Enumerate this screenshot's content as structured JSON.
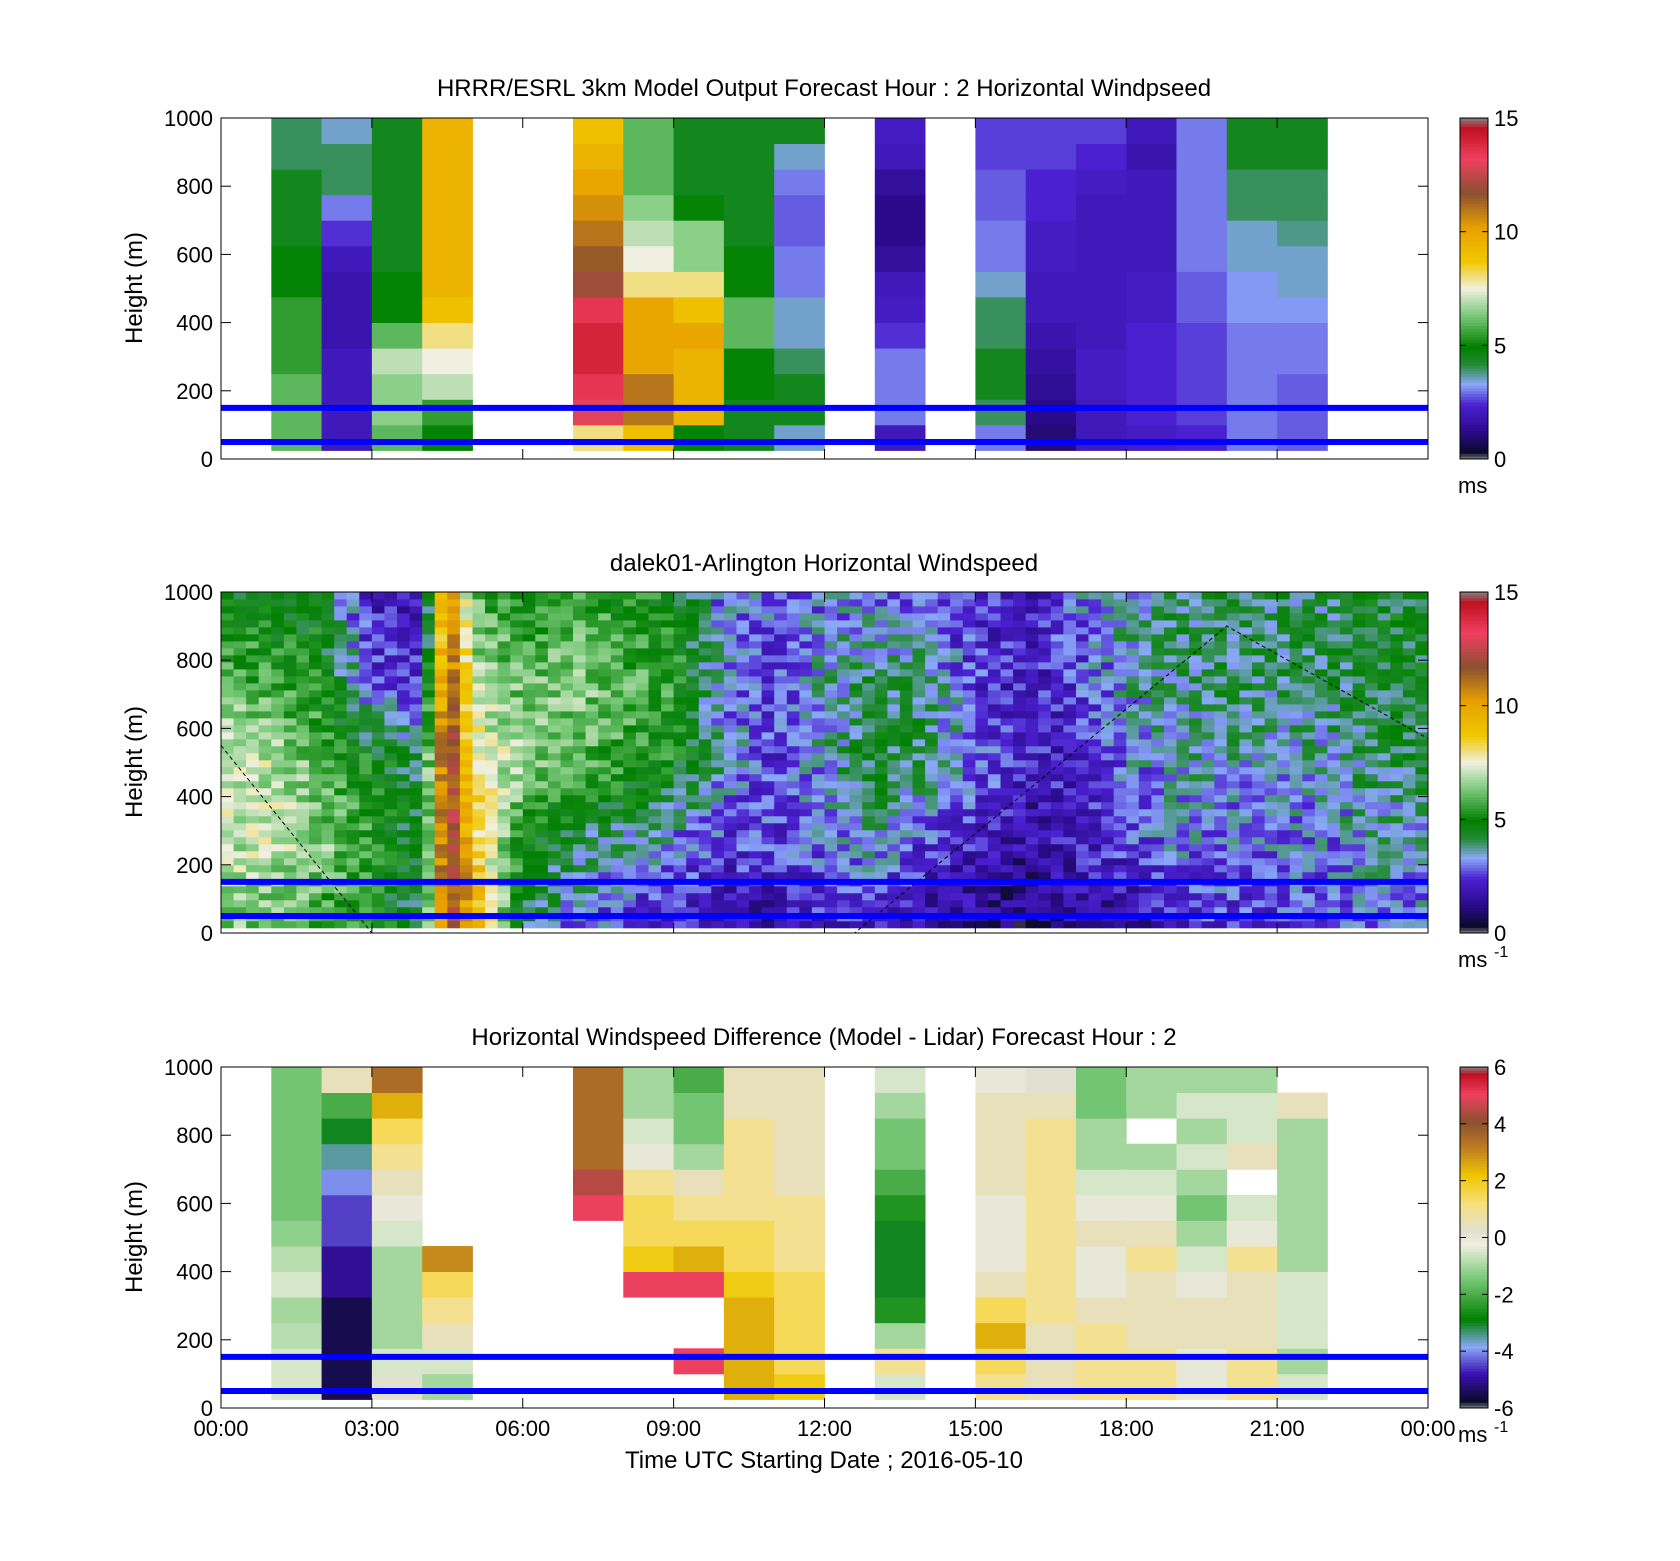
{
  "figure": {
    "xlabel": "Time UTC  Starting Date ; 2016-05-10",
    "x_ticks": [
      "00:00",
      "03:00",
      "06:00",
      "09:00",
      "12:00",
      "15:00",
      "18:00",
      "21:00",
      "00:00"
    ]
  },
  "chart_data": [
    {
      "type": "heatmap",
      "title": "HRRR/ESRL 3km Model Output   Forecast Hour : 2 Horizontal Windpseed",
      "ylabel": "Height (m)",
      "xlim_hours": [
        0,
        24
      ],
      "ylim": [
        0,
        1000
      ],
      "y_ticks": [
        "0",
        "200",
        "400",
        "600",
        "800",
        "1000"
      ],
      "colorbar": {
        "ticks": [
          "0",
          "5",
          "10",
          "15"
        ],
        "range": [
          0,
          15
        ],
        "unit": "ms",
        "unit_sup": "",
        "palette": "wind"
      },
      "hlines_m": [
        50,
        150
      ],
      "column_width_hours": 1,
      "columns": [
        {
          "t": 1,
          "v": [
            6,
            6,
            6,
            5.5,
            5.5,
            5.5,
            5,
            5,
            4.5,
            4.5,
            4.5,
            4,
            4
          ]
        },
        {
          "t": 2,
          "v": [
            2,
            2,
            2,
            2,
            1.8,
            1.8,
            1.8,
            2,
            2.5,
            3,
            4,
            4,
            3.5
          ]
        },
        {
          "t": 3,
          "v": [
            6,
            6.5,
            6.5,
            7,
            6,
            5,
            5,
            4.5,
            4.5,
            4.5,
            4.5,
            4.5,
            4.5
          ]
        },
        {
          "t": 4,
          "v": [
            5,
            5.5,
            7,
            7.5,
            8,
            9,
            9.5,
            9.5,
            9.5,
            9.5,
            9.5,
            9.5,
            9.5
          ]
        },
        {
          "t": 7,
          "v": [
            8,
            13,
            13.5,
            14,
            14,
            13.5,
            12,
            11.5,
            11,
            10.5,
            10,
            9.5,
            9
          ]
        },
        {
          "t": 8,
          "v": [
            9,
            11,
            11,
            10,
            10,
            10,
            8,
            7.5,
            7,
            6.5,
            6,
            6,
            6
          ]
        },
        {
          "t": 9,
          "v": [
            5,
            9.5,
            9.5,
            9.5,
            10,
            9,
            8,
            6.5,
            6.5,
            5,
            4.5,
            4.5,
            4.5
          ]
        },
        {
          "t": 10,
          "v": [
            4.5,
            4.5,
            5,
            5,
            6,
            6,
            5,
            5,
            4.5,
            4.5,
            4.5,
            4.5,
            4.5
          ]
        },
        {
          "t": 11,
          "v": [
            3.5,
            4.5,
            4.5,
            4,
            3.5,
            3.5,
            3,
            3,
            2.8,
            2.8,
            3,
            3.5,
            4.5
          ]
        },
        {
          "t": 13,
          "v": [
            2,
            3,
            3,
            3,
            2.5,
            2.2,
            2,
            1.5,
            1.2,
            1.2,
            1.5,
            2,
            2.2
          ]
        },
        {
          "t": 15,
          "v": [
            3,
            4,
            4.5,
            4.5,
            4,
            4,
            3.5,
            3,
            3,
            2.8,
            2.8,
            2.6,
            2.6
          ]
        },
        {
          "t": 16,
          "v": [
            1,
            1.2,
            1.4,
            1.6,
            1.8,
            2,
            2,
            2.2,
            2.2,
            2.4,
            2.4,
            2.6,
            2.6
          ]
        },
        {
          "t": 17,
          "v": [
            2,
            2,
            2.2,
            2.2,
            2,
            2,
            2,
            2,
            2,
            2,
            2.2,
            2.4,
            2.6
          ]
        },
        {
          "t": 18,
          "v": [
            2.2,
            2.4,
            2.4,
            2.4,
            2.4,
            2.2,
            2.2,
            2,
            2,
            2,
            2,
            1.8,
            2
          ]
        },
        {
          "t": 19,
          "v": [
            2.4,
            2.6,
            2.6,
            2.6,
            2.6,
            2.8,
            2.8,
            3,
            3,
            3,
            3,
            3,
            3
          ]
        },
        {
          "t": 20,
          "v": [
            3,
            3,
            3,
            3,
            3,
            3.2,
            3.2,
            3.5,
            3.5,
            4,
            4,
            4.5,
            4.5
          ]
        },
        {
          "t": 21,
          "v": [
            2.8,
            2.8,
            2.8,
            3,
            3,
            3.2,
            3.5,
            3.5,
            3.8,
            4,
            4,
            4.5,
            4.5
          ]
        }
      ]
    },
    {
      "type": "heatmap",
      "title": "dalek01-Arlington  Horizontal Windspeed",
      "ylabel": "Height (m)",
      "xlim_hours": [
        0,
        24
      ],
      "ylim": [
        0,
        1000
      ],
      "y_ticks": [
        "0",
        "200",
        "400",
        "600",
        "800",
        "1000"
      ],
      "colorbar": {
        "ticks": [
          "0",
          "5",
          "10",
          "15"
        ],
        "range": [
          0,
          15
        ],
        "unit": "ms",
        "unit_sup": "-1",
        "palette": "wind"
      },
      "hlines_m": [
        50,
        150
      ],
      "time_profile_hours": [
        0,
        1,
        2,
        3,
        4,
        4.5,
        5,
        6,
        7,
        8,
        9,
        10,
        11,
        12,
        13,
        14,
        15,
        16,
        17,
        18,
        19,
        20,
        21,
        22,
        23,
        24
      ],
      "height_profile_m": [
        0,
        250,
        500,
        750,
        1000
      ],
      "speed_profile": [
        [
          6.5,
          7,
          7,
          6,
          5
        ],
        [
          6,
          7,
          7,
          5.5,
          4.5
        ],
        [
          5.5,
          6.5,
          6,
          5,
          4.5
        ],
        [
          5,
          5.5,
          5,
          2.5,
          2
        ],
        [
          4,
          4,
          4,
          2.5,
          1.5
        ],
        [
          12,
          13,
          13,
          12,
          11
        ],
        [
          10,
          9,
          8,
          7,
          6
        ],
        [
          4,
          5,
          6.5,
          6,
          5
        ],
        [
          3,
          4,
          6,
          6.5,
          5.5
        ],
        [
          2.5,
          3.5,
          5.5,
          6,
          5
        ],
        [
          2,
          3,
          5,
          5.5,
          5
        ],
        [
          1.5,
          2.5,
          3.5,
          3,
          3
        ],
        [
          1.5,
          2.5,
          2.5,
          2.5,
          3
        ],
        [
          2,
          3,
          3.5,
          3.5,
          3
        ],
        [
          2,
          3.5,
          4.5,
          4,
          3
        ],
        [
          1.5,
          2.5,
          4,
          4,
          2.5
        ],
        [
          1.2,
          2,
          3,
          2.5,
          2.2
        ],
        [
          1,
          1.5,
          2,
          2,
          2
        ],
        [
          1.2,
          2,
          2.2,
          2.5,
          3
        ],
        [
          1.5,
          2.5,
          3,
          3.5,
          3.5
        ],
        [
          2,
          3,
          3.5,
          4,
          4
        ],
        [
          2.5,
          3,
          3.5,
          4,
          4
        ],
        [
          2.5,
          3,
          3.5,
          4,
          4
        ],
        [
          2.5,
          3,
          3.5,
          4,
          4
        ],
        [
          3,
          3.5,
          4,
          4.5,
          4.5
        ],
        [
          3,
          3.5,
          4,
          4.5,
          4.5
        ]
      ],
      "boundary_layer_curve": {
        "style": "dashed",
        "points_hours_m": [
          [
            0,
            550
          ],
          [
            3,
            0
          ],
          [
            12.6,
            0
          ],
          [
            20,
            900
          ],
          [
            24,
            570
          ]
        ]
      }
    },
    {
      "type": "heatmap",
      "title": "Horizontal Windspeed Difference (Model - Lidar) Forecast Hour : 2",
      "ylabel": "Height (m)",
      "xlim_hours": [
        0,
        24
      ],
      "ylim": [
        0,
        1000
      ],
      "y_ticks": [
        "0",
        "200",
        "400",
        "600",
        "800",
        "1000"
      ],
      "colorbar": {
        "ticks": [
          "-6",
          "-4",
          "-2",
          "0",
          "2",
          "4",
          "6"
        ],
        "range": [
          -6,
          6
        ],
        "unit": "ms",
        "unit_sup": "-1",
        "palette": "diff"
      },
      "hlines_m": [
        50,
        150
      ],
      "column_width_hours": 1,
      "columns": [
        {
          "t": 1,
          "v": [
            -0.5,
            -0.5,
            -0.8,
            -1,
            -0.5,
            -0.8,
            -1.2,
            -1.5,
            -1.5,
            -1.5,
            -1.5,
            -1.5,
            -1.5
          ]
        },
        {
          "t": 2,
          "v": [
            -5.5,
            -5.5,
            -5.5,
            -5.5,
            -5,
            -5,
            -4.5,
            -4.5,
            -4,
            -3.5,
            -3,
            -2,
            0.5
          ]
        },
        {
          "t": 3,
          "v": [
            0.2,
            -0.5,
            -1,
            -1,
            -1,
            -1,
            -0.5,
            0,
            0.5,
            1,
            1.5,
            2.5,
            3.5
          ]
        },
        {
          "t": 4,
          "v": [
            -1,
            -0.5,
            0.5,
            1,
            1.5,
            3,
            null,
            null,
            null,
            null,
            null,
            null,
            null
          ]
        },
        {
          "t": 7,
          "v": [
            null,
            null,
            null,
            null,
            null,
            null,
            null,
            5,
            4.5,
            3.5,
            3.5,
            3.5,
            3.5
          ]
        },
        {
          "t": 8,
          "v": [
            null,
            null,
            null,
            null,
            5,
            2,
            1.5,
            1.5,
            1,
            0,
            -0.5,
            -1,
            -1
          ]
        },
        {
          "t": 9,
          "v": [
            null,
            5,
            null,
            null,
            5,
            2.5,
            1.5,
            1,
            0.5,
            -1,
            -1.5,
            -1.5,
            -2
          ]
        },
        {
          "t": 10,
          "v": [
            2.5,
            2.5,
            2.5,
            2.5,
            2,
            1.5,
            1.5,
            1,
            1,
            1,
            1,
            0.5,
            0.5
          ]
        },
        {
          "t": 11,
          "v": [
            2,
            1.5,
            1.5,
            1.5,
            1.5,
            1,
            1,
            1,
            0.5,
            0.5,
            0.5,
            0.5,
            0.5
          ]
        },
        {
          "t": 13,
          "v": [
            -0.5,
            1,
            -1,
            -2.5,
            -3,
            -3,
            -3,
            -2.5,
            -2,
            -1.5,
            -1.5,
            -1,
            -0.5
          ]
        },
        {
          "t": 15,
          "v": [
            1,
            1.5,
            2.5,
            1.5,
            0.5,
            0,
            0,
            0,
            0.5,
            0.5,
            0.5,
            0.5,
            0
          ]
        },
        {
          "t": 16,
          "v": [
            0.5,
            0.5,
            0.5,
            1,
            1,
            1,
            1,
            1,
            1,
            1,
            1,
            0.5,
            0.2
          ]
        },
        {
          "t": 17,
          "v": [
            1,
            1,
            1,
            0.5,
            0,
            0,
            0.5,
            0,
            -0.5,
            -1,
            -1,
            -1.5,
            -1.5
          ]
        },
        {
          "t": 18,
          "v": [
            1,
            1,
            0.5,
            0.5,
            0.5,
            1,
            0.5,
            0,
            -0.5,
            -1,
            null,
            -1,
            -1
          ]
        },
        {
          "t": 19,
          "v": [
            0,
            0,
            0.5,
            0.5,
            0,
            -0.5,
            -1,
            -1.5,
            -1,
            -0.5,
            -1,
            -0.5,
            -1
          ]
        },
        {
          "t": 20,
          "v": [
            1,
            1,
            0.5,
            0.5,
            0.5,
            1,
            0,
            -0.5,
            null,
            0.5,
            -0.5,
            -0.5,
            -1
          ]
        },
        {
          "t": 21,
          "v": [
            -0.5,
            -1,
            -0.5,
            -0.5,
            -0.5,
            -1,
            -1,
            -1,
            -1,
            -1,
            -1,
            0.5,
            null
          ]
        }
      ]
    }
  ]
}
